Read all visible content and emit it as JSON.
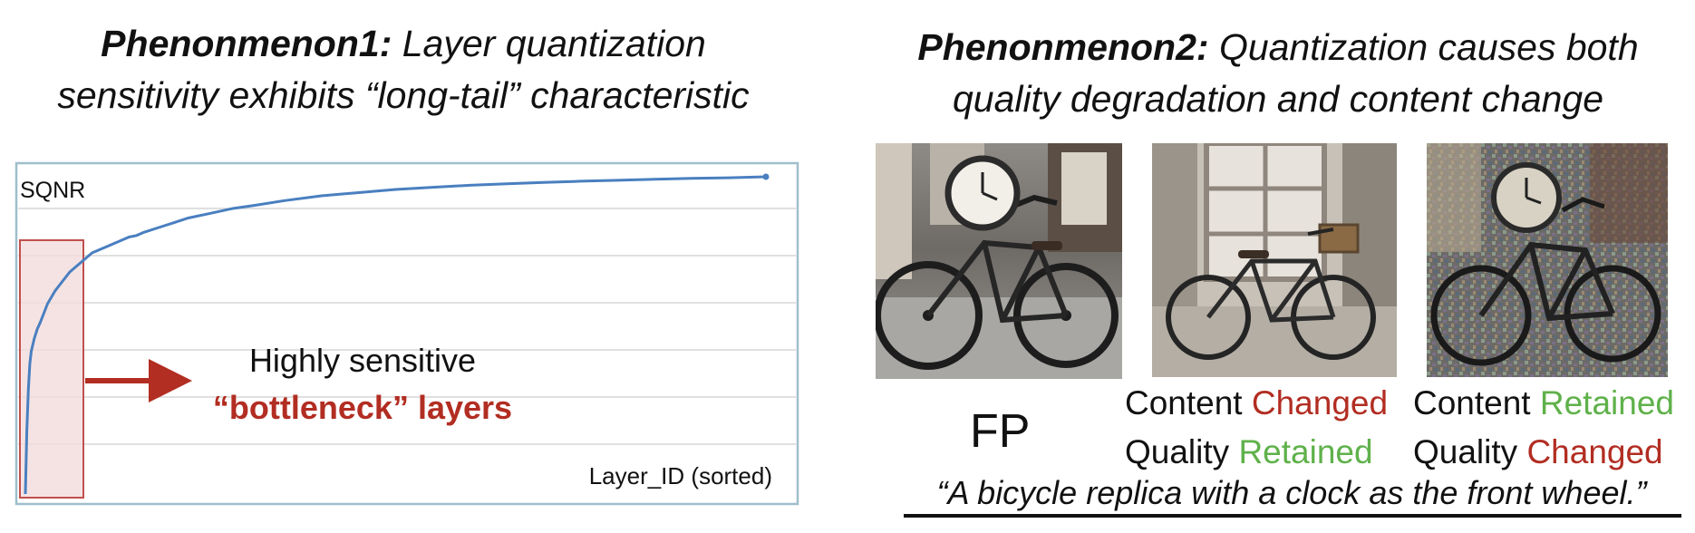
{
  "phenomenon1": {
    "title_bold": "Phenonmenon1:",
    "title_rest_line1": " Layer quantization",
    "title_line2": "sensitivity exhibits “long-tail” characteristic"
  },
  "phenomenon2": {
    "title_bold": "Phenonmenon2:",
    "title_rest_line1": " Quantization causes both",
    "title_line2": "quality degradation and content change"
  },
  "chart_data": {
    "type": "line",
    "ylabel": "SQNR",
    "xlabel": "Layer_ID (sorted)",
    "grid": true,
    "x": [
      0,
      2,
      4,
      6,
      8,
      12,
      16,
      20,
      25,
      30,
      40,
      50,
      60,
      70,
      80,
      90,
      100,
      110,
      120,
      130,
      140,
      150,
      160,
      180,
      200,
      220,
      250,
      280,
      310,
      350,
      400,
      450,
      500,
      550,
      600,
      650,
      700,
      750,
      800,
      850,
      900,
      950,
      1000
    ],
    "values": [
      0.0,
      0.2,
      0.33,
      0.41,
      0.45,
      0.49,
      0.52,
      0.54,
      0.57,
      0.6,
      0.64,
      0.67,
      0.7,
      0.72,
      0.74,
      0.76,
      0.77,
      0.78,
      0.79,
      0.8,
      0.81,
      0.815,
      0.825,
      0.84,
      0.855,
      0.87,
      0.885,
      0.9,
      0.91,
      0.925,
      0.94,
      0.95,
      0.96,
      0.967,
      0.973,
      0.978,
      0.982,
      0.986,
      0.989,
      0.992,
      0.995,
      0.997,
      1.0
    ],
    "xlim": [
      0,
      1000
    ],
    "ylim": [
      0,
      1
    ],
    "highlight_region": [
      0,
      90
    ],
    "annotation": {
      "line1": "Highly sensitive",
      "line2": "“bottleneck” layers"
    },
    "colors": {
      "line": "#4a7fc0",
      "frame": "#9fbfcc",
      "grid": "#d6d6d6",
      "highlight_fill": "#f2dcdc",
      "highlight_stroke": "#c0504d",
      "arrow": "#b22d22"
    }
  },
  "images": [
    {
      "label": "FP",
      "icon": "bicycle-clock-photo-fp"
    },
    {
      "label_line1_a": "Content ",
      "label_line1_b": "Changed",
      "label_line2_a": "Quality ",
      "label_line2_b": "Retained",
      "icon": "bicycle-photo-content-changed"
    },
    {
      "label_line1_a": "Content ",
      "label_line1_b": "Retained",
      "label_line2_a": "Quality ",
      "label_line2_b": "Changed",
      "icon": "bicycle-clock-photo-quality-changed"
    }
  ],
  "prompt": "“A bicycle replica with a clock as the front wheel.”",
  "colors": {
    "red_text": "#b22d22",
    "green_text": "#5fb14a"
  }
}
